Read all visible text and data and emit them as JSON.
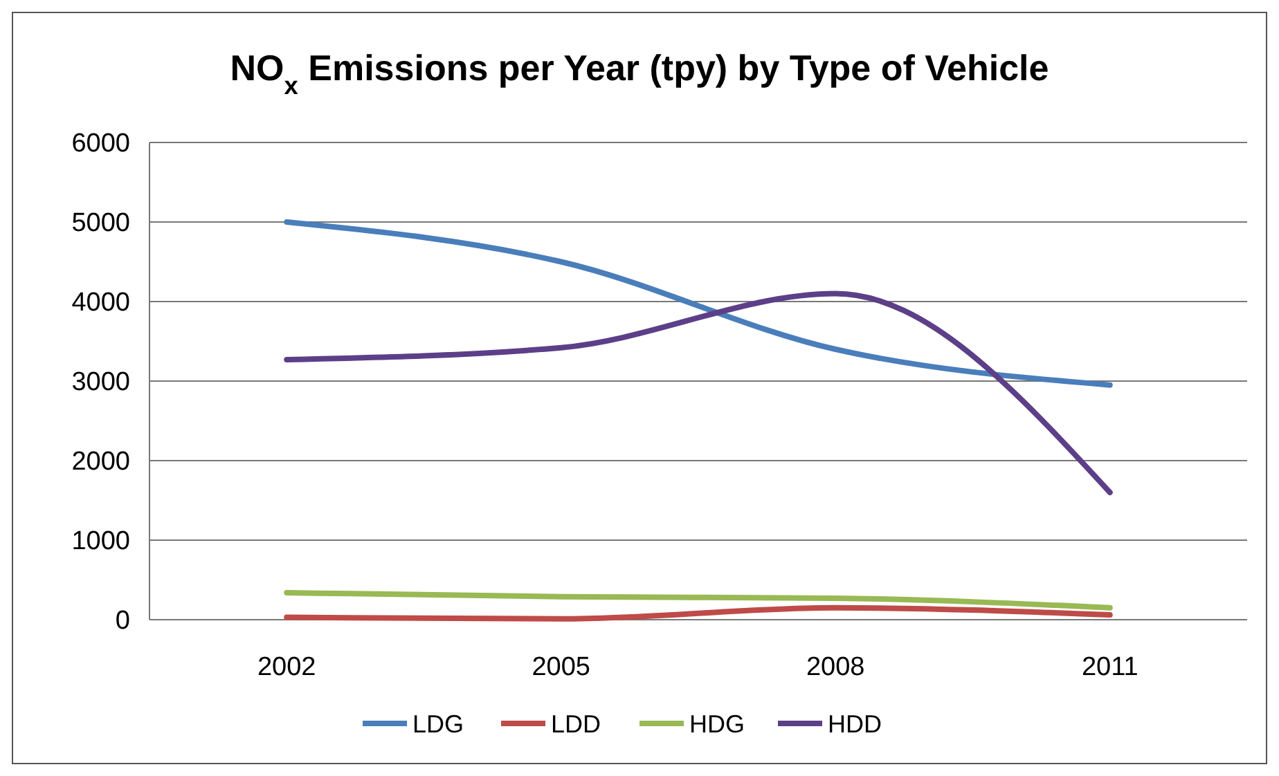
{
  "chart_data": {
    "type": "line",
    "title": "NO$_{x}$ Emissions per Year (tpy) by Type of Vehicle",
    "categories": [
      "2002",
      "2005",
      "2008",
      "2011"
    ],
    "series": [
      {
        "name": "LDG",
        "color": "#4a7ebb",
        "values": [
          5000,
          4500,
          3400,
          2950
        ]
      },
      {
        "name": "LDD",
        "color": "#be4b48",
        "values": [
          30,
          10,
          150,
          60
        ]
      },
      {
        "name": "HDG",
        "color": "#98b954",
        "values": [
          340,
          290,
          270,
          150
        ]
      },
      {
        "name": "HDD",
        "color": "#5c3f88",
        "values": [
          3270,
          3420,
          4100,
          1600
        ]
      }
    ],
    "ylim": [
      0,
      6000
    ],
    "yticks": [
      0,
      1000,
      2000,
      3000,
      4000,
      5000,
      6000
    ],
    "grid": "y",
    "legend": "bottom",
    "marker": "none",
    "line_style": "solid"
  }
}
